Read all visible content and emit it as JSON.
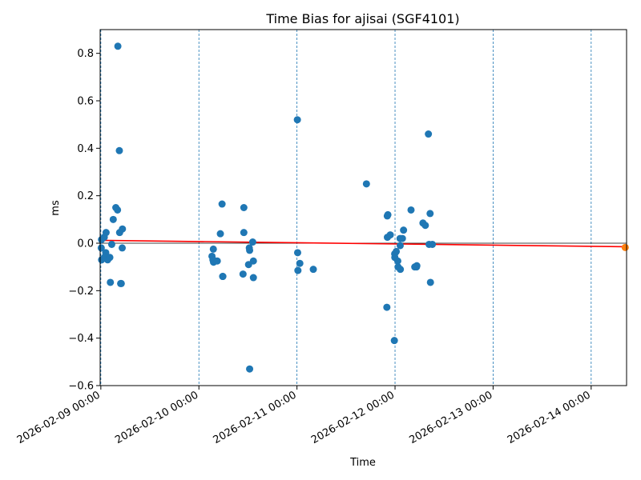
{
  "chart_data": {
    "type": "scatter",
    "title": "Time Bias for ajisai (SGF4101)",
    "xlabel": "Time",
    "ylabel": "ms",
    "x_axis_type": "datetime",
    "xlim": [
      "2026-02-08 23:50",
      "2026-02-14 08:40"
    ],
    "ylim": [
      -0.6,
      0.9
    ],
    "y_ticks": [
      -0.6,
      -0.4,
      -0.2,
      0.0,
      0.2,
      0.4,
      0.6,
      0.8
    ],
    "y_tick_labels": [
      "−0.6",
      "−0.4",
      "−0.2",
      "0.0",
      "0.2",
      "0.4",
      "0.6",
      "0.8"
    ],
    "x_ticks": [
      "2026-02-09 00:00",
      "2026-02-10 00:00",
      "2026-02-11 00:00",
      "2026-02-12 00:00",
      "2026-02-13 00:00",
      "2026-02-14 00:00"
    ],
    "x_tick_labels": [
      "2026-02-09 00:00",
      "2026-02-10 00:00",
      "2026-02-11 00:00",
      "2026-02-12 00:00",
      "2026-02-13 00:00",
      "2026-02-14 00:00"
    ],
    "grid": "vertical dashed lines at each day",
    "reference_line_y": 0.0,
    "colors": {
      "points": "#1f77b4",
      "trend": "#ff0000",
      "prediction": "#ff7f0e",
      "grid": "#1f77b4",
      "zero_line": "#000000"
    },
    "series": [
      {
        "kind": "points",
        "points": [
          [
            "2026-02-09 00:06",
            -0.02
          ],
          [
            "2026-02-09 00:10",
            0.015
          ],
          [
            "2026-02-09 00:11",
            -0.07
          ],
          [
            "2026-02-09 00:50",
            0.025
          ],
          [
            "2026-02-09 00:52",
            -0.06
          ],
          [
            "2026-02-09 01:12",
            -0.04
          ],
          [
            "2026-02-09 01:17",
            0.045
          ],
          [
            "2026-02-09 01:40",
            -0.07
          ],
          [
            "2026-02-09 02:12",
            -0.06
          ],
          [
            "2026-02-09 02:20",
            -0.165
          ],
          [
            "2026-02-09 02:40",
            -0.005
          ],
          [
            "2026-02-09 03:02",
            0.1
          ],
          [
            "2026-02-09 03:40",
            0.15
          ],
          [
            "2026-02-09 04:05",
            0.14
          ],
          [
            "2026-02-09 04:10",
            0.83
          ],
          [
            "2026-02-09 04:32",
            0.39
          ],
          [
            "2026-02-09 04:36",
            0.045
          ],
          [
            "2026-02-09 04:51",
            -0.17
          ],
          [
            "2026-02-09 05:00",
            -0.17
          ],
          [
            "2026-02-09 05:14",
            -0.02
          ],
          [
            "2026-02-09 05:17",
            0.06
          ],
          [
            "2026-02-10 03:12",
            -0.055
          ],
          [
            "2026-02-10 03:26",
            -0.07
          ],
          [
            "2026-02-10 03:32",
            -0.025
          ],
          [
            "2026-02-10 03:35",
            -0.08
          ],
          [
            "2026-02-10 03:40",
            -0.075
          ],
          [
            "2026-02-10 04:05",
            -0.075
          ],
          [
            "2026-02-10 04:30",
            -0.075
          ],
          [
            "2026-02-10 05:15",
            0.04
          ],
          [
            "2026-02-10 05:40",
            0.165
          ],
          [
            "2026-02-10 05:49",
            -0.14
          ],
          [
            "2026-02-10 05:52",
            -0.14
          ],
          [
            "2026-02-10 10:48",
            -0.13
          ],
          [
            "2026-02-10 11:00",
            0.15
          ],
          [
            "2026-02-10 11:00",
            0.045
          ],
          [
            "2026-02-10 12:09",
            -0.09
          ],
          [
            "2026-02-10 12:20",
            -0.02
          ],
          [
            "2026-02-10 12:25",
            -0.03
          ],
          [
            "2026-02-10 12:25",
            -0.53
          ],
          [
            "2026-02-10 13:10",
            0.005
          ],
          [
            "2026-02-10 13:20",
            -0.145
          ],
          [
            "2026-02-10 13:20",
            -0.075
          ],
          [
            "2026-02-11 00:06",
            0.52
          ],
          [
            "2026-02-11 00:10",
            -0.04
          ],
          [
            "2026-02-11 00:14",
            -0.115
          ],
          [
            "2026-02-11 00:42",
            -0.085
          ],
          [
            "2026-02-11 04:00",
            -0.11
          ],
          [
            "2026-02-11 17:00",
            0.25
          ],
          [
            "2026-02-11 22:00",
            -0.27
          ],
          [
            "2026-02-11 22:06",
            0.115
          ],
          [
            "2026-02-11 22:08",
            0.025
          ],
          [
            "2026-02-11 22:15",
            0.12
          ],
          [
            "2026-02-11 22:50",
            0.035
          ],
          [
            "2026-02-11 23:50",
            -0.41
          ],
          [
            "2026-02-11 23:55",
            -0.045
          ],
          [
            "2026-02-11 23:57",
            -0.06
          ],
          [
            "2026-02-12 00:18",
            -0.035
          ],
          [
            "2026-02-12 00:40",
            -0.075
          ],
          [
            "2026-02-12 00:44",
            -0.1
          ],
          [
            "2026-02-12 01:14",
            0.02
          ],
          [
            "2026-02-12 01:16",
            -0.01
          ],
          [
            "2026-02-12 01:18",
            -0.11
          ],
          [
            "2026-02-12 01:48",
            0.02
          ],
          [
            "2026-02-12 02:05",
            0.055
          ],
          [
            "2026-02-12 03:55",
            0.14
          ],
          [
            "2026-02-12 04:50",
            -0.1
          ],
          [
            "2026-02-12 05:15",
            -0.1
          ],
          [
            "2026-02-12 05:20",
            -0.095
          ],
          [
            "2026-02-12 06:50",
            0.085
          ],
          [
            "2026-02-12 07:25",
            0.075
          ],
          [
            "2026-02-12 08:10",
            0.46
          ],
          [
            "2026-02-12 08:20",
            -0.005
          ],
          [
            "2026-02-12 08:35",
            0.125
          ],
          [
            "2026-02-12 08:40",
            -0.165
          ],
          [
            "2026-02-12 09:08",
            -0.005
          ]
        ]
      },
      {
        "kind": "trend",
        "line": [
          [
            "2026-02-09 00:00",
            0.012
          ],
          [
            "2026-02-14 08:40",
            -0.015
          ]
        ]
      },
      {
        "kind": "prediction",
        "points": [
          [
            "2026-02-14 08:20",
            -0.018
          ]
        ]
      }
    ]
  }
}
